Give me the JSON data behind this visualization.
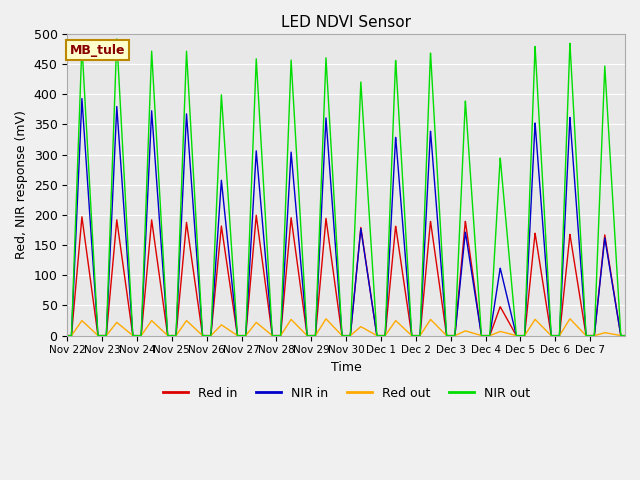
{
  "title": "LED NDVI Sensor",
  "xlabel": "Time",
  "ylabel": "Red, NIR response (mV)",
  "ylim": [
    0,
    500
  ],
  "fig_bg_color": "#f0f0f0",
  "plot_bg_color": "#e8e8e8",
  "legend_label": "MB_tule",
  "legend_bg": "#ffffcc",
  "legend_border": "#bb8800",
  "legend_text_color": "#880000",
  "colors": {
    "red_in": "#dd0000",
    "nir_in": "#0000cc",
    "red_out": "#ffaa00",
    "nir_out": "#00dd00"
  },
  "series_labels": [
    "Red in",
    "NIR in",
    "Red out",
    "NIR out"
  ],
  "tick_labels": [
    "Nov 22",
    "Nov 23",
    "Nov 24",
    "Nov 25",
    "Nov 26",
    "Nov 27",
    "Nov 28",
    "Nov 29",
    "Nov 30",
    "Dec 1",
    "Dec 2",
    "Dec 3",
    "Dec 4",
    "Dec 5",
    "Dec 6",
    "Dec 7"
  ],
  "num_days": 16,
  "red_in_peaks": [
    197,
    192,
    192,
    188,
    182,
    200,
    196,
    195,
    180,
    182,
    190,
    190,
    48,
    170,
    168,
    167
  ],
  "nir_in_peaks": [
    393,
    380,
    373,
    368,
    258,
    307,
    305,
    362,
    178,
    330,
    340,
    172,
    112,
    353,
    362,
    162
  ],
  "red_out_peaks": [
    25,
    22,
    25,
    25,
    18,
    22,
    27,
    28,
    15,
    25,
    27,
    8,
    7,
    27,
    28,
    5
  ],
  "nir_out_peaks": [
    482,
    492,
    472,
    472,
    400,
    460,
    458,
    462,
    422,
    458,
    470,
    390,
    295,
    480,
    485,
    447
  ],
  "grid_color": "#ffffff",
  "line_width": 1.0
}
